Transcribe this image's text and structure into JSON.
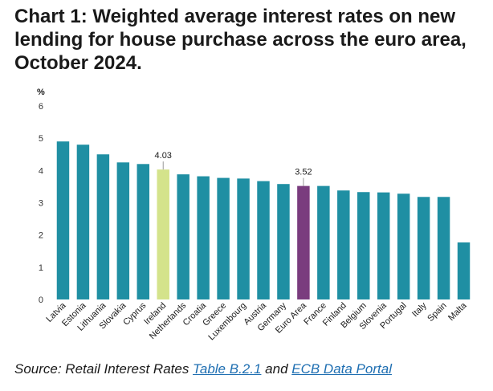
{
  "title": "Chart 1: Weighted average interest rates on new lending for house purchase across the euro area, October 2024.",
  "source": {
    "prefix": "Source: Retail Interest Rates ",
    "link1": "Table B.2.1",
    "middle": " and ",
    "link2": "ECB Data Portal"
  },
  "colors": {
    "default": "#1f8fa3",
    "ireland": "#d4e38b",
    "euro_area": "#7a3c7e"
  },
  "chart_data": {
    "type": "bar",
    "ylabel": "%",
    "ylim": [
      0,
      6
    ],
    "yticks": [
      0,
      1,
      2,
      3,
      4,
      5,
      6
    ],
    "grid": false,
    "categories": [
      "Latvia",
      "Estonia",
      "Lithuania",
      "Slovakia",
      "Cyprus",
      "Ireland",
      "Netherlands",
      "Croatia",
      "Greece",
      "Luxembourg",
      "Austria",
      "Germany",
      "Euro Area",
      "France",
      "Finland",
      "Belgium",
      "Slovenia",
      "Portugal",
      "Italy",
      "Spain",
      "Malta"
    ],
    "values": [
      4.9,
      4.8,
      4.5,
      4.25,
      4.2,
      4.03,
      3.88,
      3.82,
      3.77,
      3.75,
      3.67,
      3.58,
      3.52,
      3.52,
      3.38,
      3.33,
      3.32,
      3.28,
      3.18,
      3.18,
      1.77
    ],
    "highlight": {
      "Ireland": "ireland",
      "Euro Area": "euro_area"
    },
    "data_labels": [
      {
        "category": "Ireland",
        "text": "4.03"
      },
      {
        "category": "Euro Area",
        "text": "3.52"
      }
    ]
  }
}
